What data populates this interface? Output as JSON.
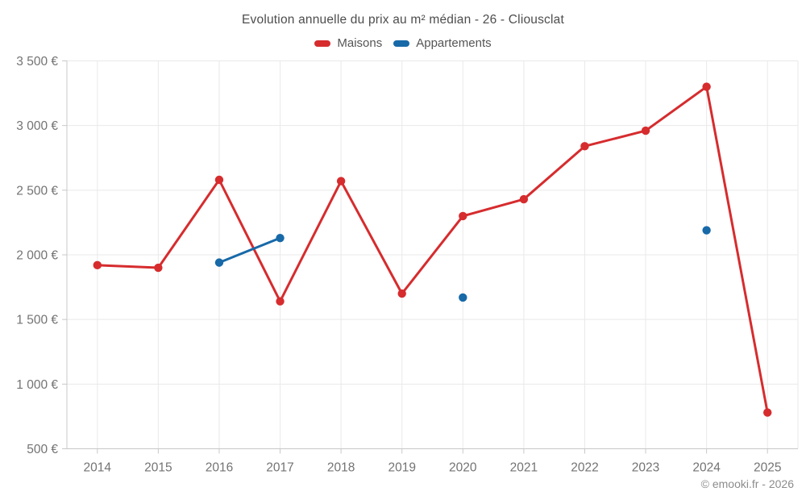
{
  "header": {
    "title": "Evolution annuelle du prix au m² médian - 26 - Cliousclat"
  },
  "legend": {
    "items": [
      {
        "label": "Maisons",
        "color": "#d62c2e"
      },
      {
        "label": "Appartements",
        "color": "#1769a8"
      }
    ]
  },
  "chart_data": {
    "type": "line",
    "title": "Evolution annuelle du prix au m² médian - 26 - Cliousclat",
    "categories": [
      "2014",
      "2015",
      "2016",
      "2017",
      "2018",
      "2019",
      "2020",
      "2021",
      "2022",
      "2023",
      "2024",
      "2025"
    ],
    "series": [
      {
        "name": "Maisons",
        "color": "#d62c2e",
        "values": [
          1920,
          1900,
          2580,
          1640,
          2570,
          1700,
          2300,
          2430,
          2840,
          2960,
          3300,
          780
        ]
      },
      {
        "name": "Appartements",
        "color": "#1769a8",
        "values": [
          null,
          null,
          1940,
          2130,
          null,
          null,
          1670,
          null,
          null,
          null,
          2190,
          null
        ]
      }
    ],
    "ylabel": "",
    "xlabel": "",
    "ylim": [
      500,
      3500
    ],
    "y_ticks": [
      500,
      1000,
      1500,
      2000,
      2500,
      3000,
      3500
    ],
    "y_tick_labels": [
      "500 €",
      "1 000 €",
      "1 500 €",
      "2 000 €",
      "2 500 €",
      "3 000 €",
      "3 500 €"
    ],
    "grid": true,
    "legend_position": "top",
    "axis_color": "#c8c8c8",
    "grid_color": "#e9e9e9",
    "tick_label_color": "#737373"
  },
  "footer": {
    "copyright": "© emooki.fr - 2026"
  }
}
